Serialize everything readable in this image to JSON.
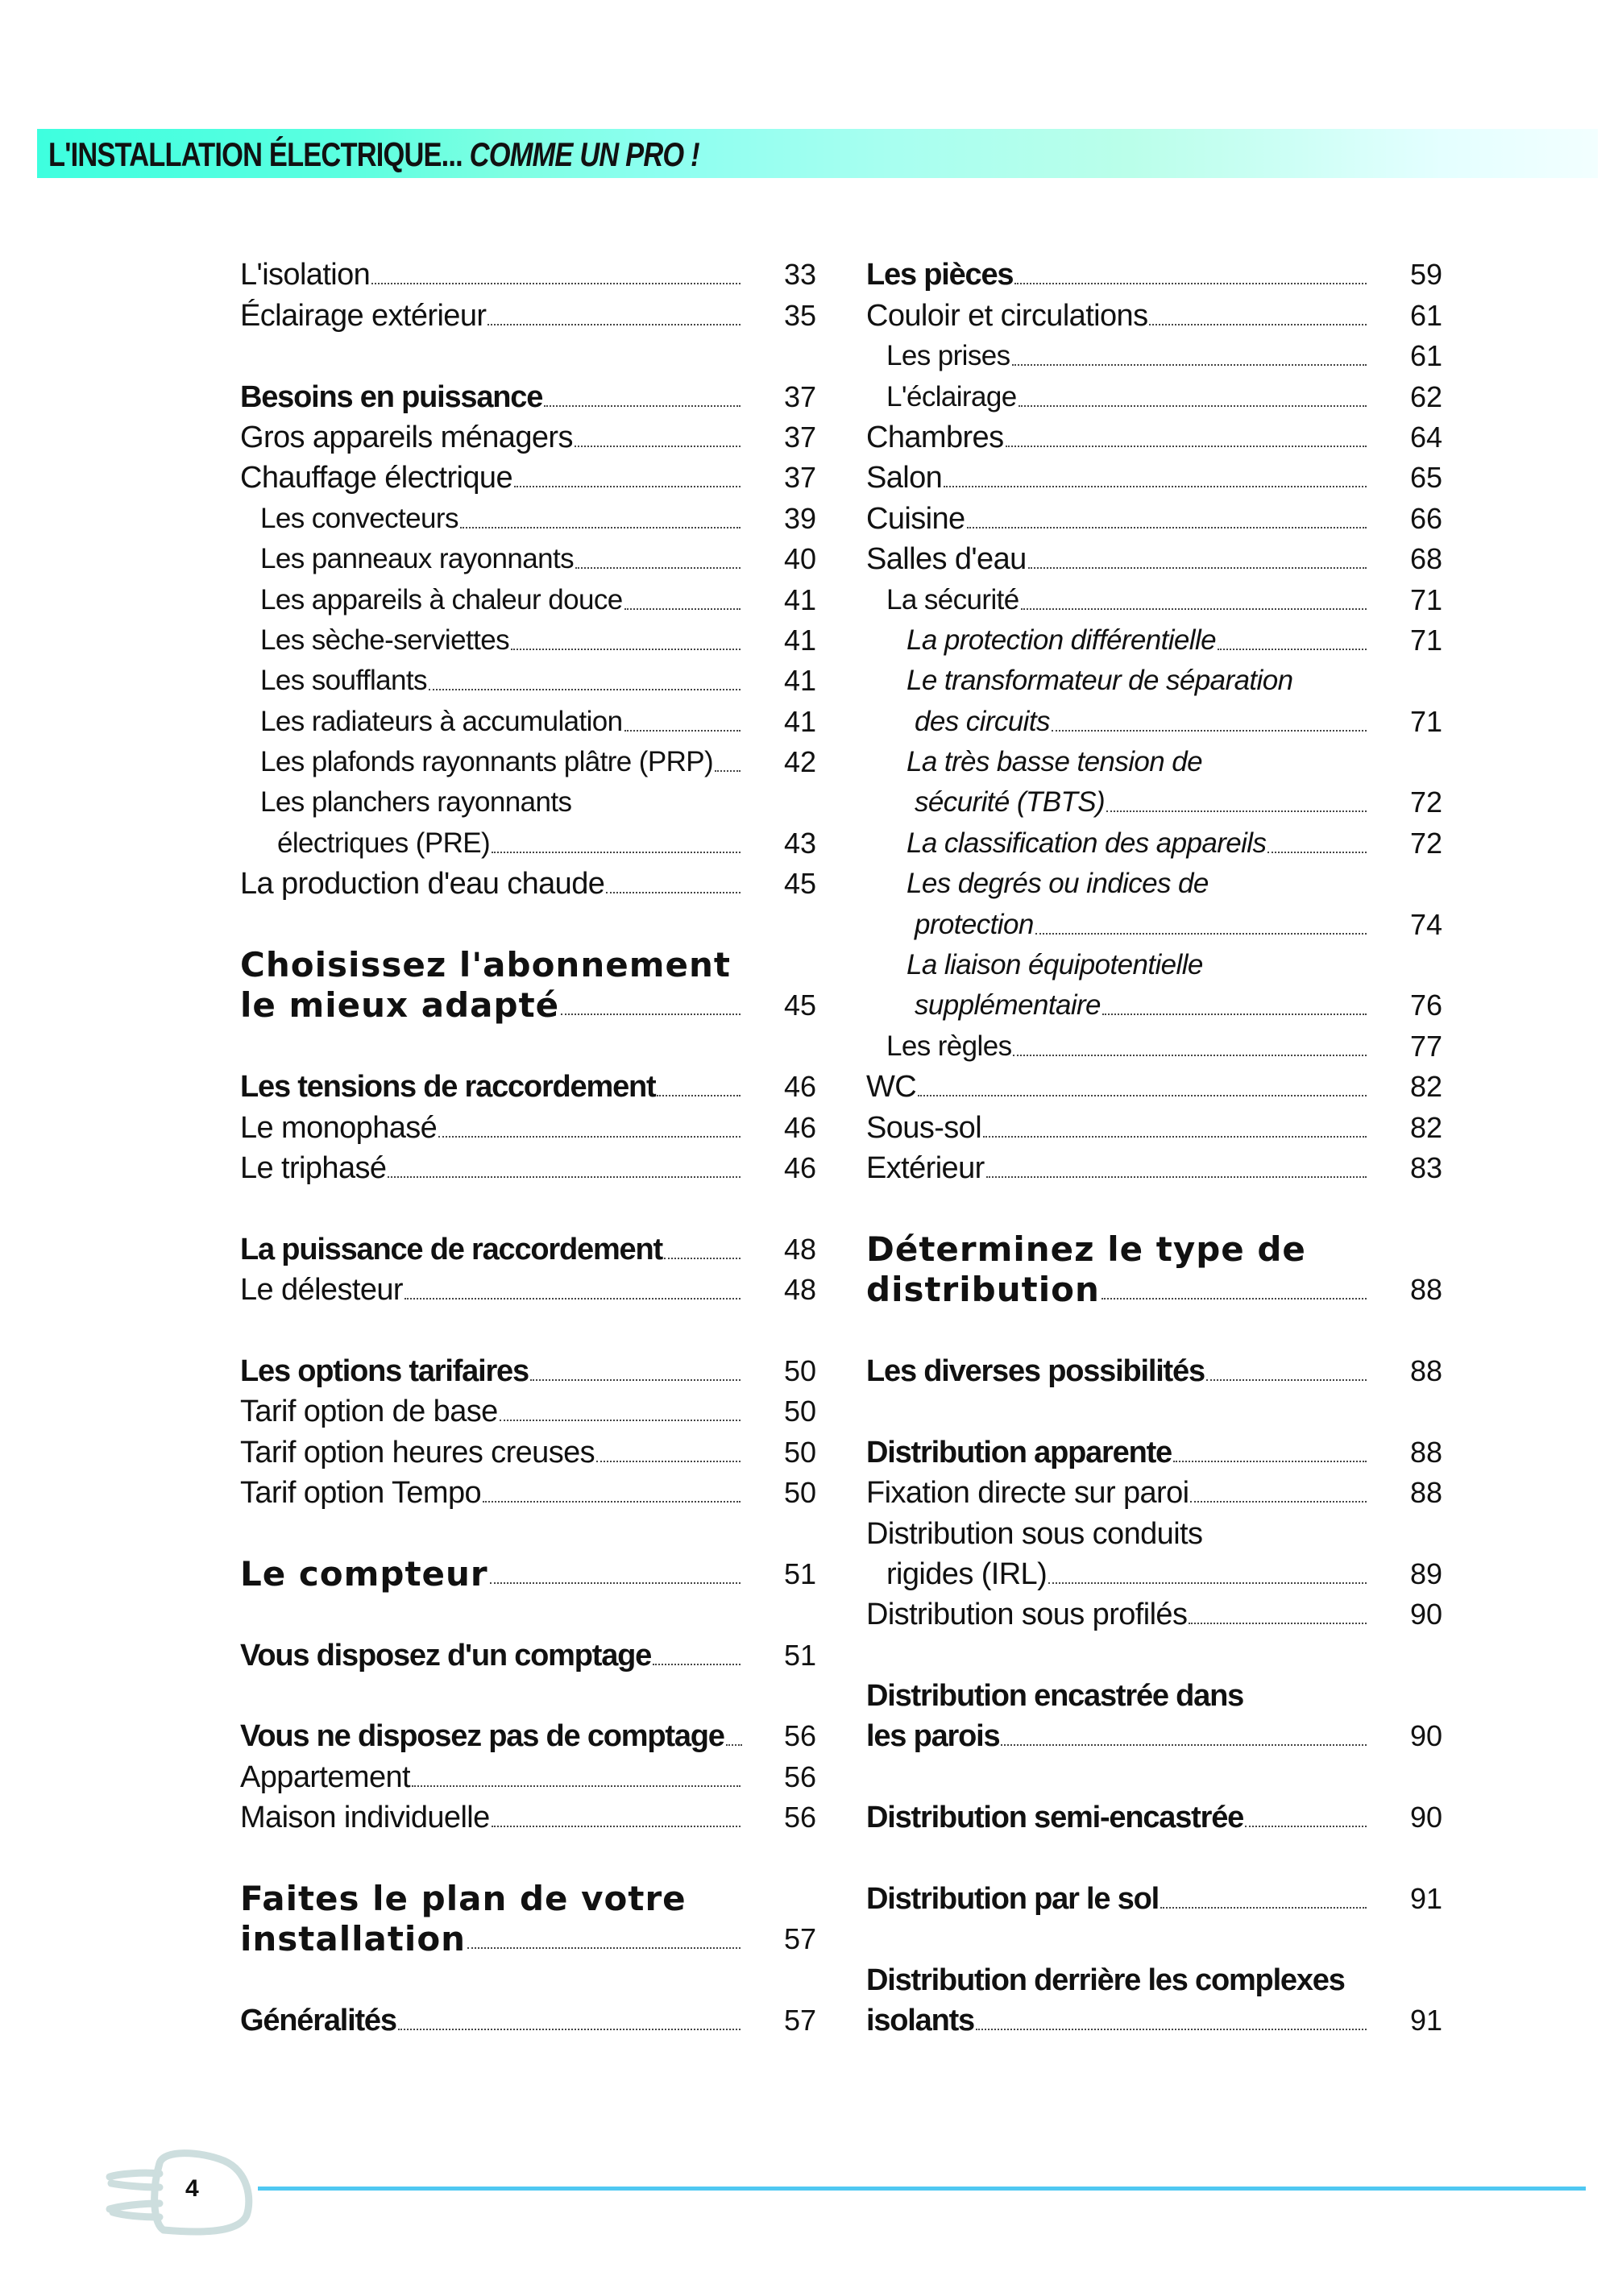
{
  "header": {
    "title_plain": "L'INSTALLATION ÉLECTRIQUE...",
    "title_italic": "COMME UN PRO !"
  },
  "footer": {
    "page_number": "4",
    "icon": "plug-icon",
    "accent_color": "#4fc8f2"
  },
  "columns": [
    {
      "groups": [
        {
          "entries": [
            {
              "lines": [
                "L'isolation"
              ],
              "page": "33",
              "style": "normal"
            },
            {
              "lines": [
                "Éclairage extérieur"
              ],
              "page": "35",
              "style": "normal"
            }
          ]
        },
        {
          "entries": [
            {
              "lines": [
                "Besoins en puissance"
              ],
              "page": "37",
              "style": "bold"
            },
            {
              "lines": [
                "Gros appareils ménagers"
              ],
              "page": "37",
              "style": "normal"
            },
            {
              "lines": [
                "Chauffage électrique"
              ],
              "page": "37",
              "style": "normal"
            },
            {
              "lines": [
                "Les convecteurs"
              ],
              "page": "39",
              "style": "sub"
            },
            {
              "lines": [
                "Les panneaux rayonnants"
              ],
              "page": "40",
              "style": "sub"
            },
            {
              "lines": [
                "Les appareils à chaleur douce"
              ],
              "page": "41",
              "style": "sub"
            },
            {
              "lines": [
                "Les sèche-serviettes"
              ],
              "page": "41",
              "style": "sub"
            },
            {
              "lines": [
                "Les soufflants"
              ],
              "page": "41",
              "style": "sub"
            },
            {
              "lines": [
                "Les radiateurs à accumulation"
              ],
              "page": "41",
              "style": "sub"
            },
            {
              "lines": [
                "Les plafonds rayonnants plâtre (PRP)"
              ],
              "page": "42",
              "style": "sub"
            },
            {
              "lines": [
                "Les planchers rayonnants",
                "électriques (PRE)"
              ],
              "page": "43",
              "style": "sub"
            },
            {
              "lines": [
                "La production d'eau chaude"
              ],
              "page": "45",
              "style": "normal"
            }
          ]
        },
        {
          "entries": [
            {
              "lines": [
                "Choisissez  l'abonnement",
                "le mieux adapté"
              ],
              "page": "45",
              "style": "heavy"
            }
          ]
        },
        {
          "entries": [
            {
              "lines": [
                "Les tensions de raccordement"
              ],
              "page": "46",
              "style": "bold"
            },
            {
              "lines": [
                "Le monophasé"
              ],
              "page": "46",
              "style": "normal"
            },
            {
              "lines": [
                "Le triphasé"
              ],
              "page": "46",
              "style": "normal"
            }
          ]
        },
        {
          "entries": [
            {
              "lines": [
                "La puissance de raccordement"
              ],
              "page": "48",
              "style": "bold"
            },
            {
              "lines": [
                "Le délesteur"
              ],
              "page": "48",
              "style": "normal"
            }
          ]
        },
        {
          "entries": [
            {
              "lines": [
                "Les options tarifaires"
              ],
              "page": "50",
              "style": "bold"
            },
            {
              "lines": [
                "Tarif option de base"
              ],
              "page": "50",
              "style": "normal"
            },
            {
              "lines": [
                "Tarif option heures creuses"
              ],
              "page": "50",
              "style": "normal"
            },
            {
              "lines": [
                "Tarif option Tempo"
              ],
              "page": "50",
              "style": "normal"
            }
          ]
        },
        {
          "entries": [
            {
              "lines": [
                "Le compteur"
              ],
              "page": "51",
              "style": "heavy"
            }
          ]
        },
        {
          "entries": [
            {
              "lines": [
                "Vous disposez d'un comptage"
              ],
              "page": "51",
              "style": "bold"
            }
          ]
        },
        {
          "entries": [
            {
              "lines": [
                "Vous ne disposez pas de comptage"
              ],
              "page": "56",
              "style": "bold"
            },
            {
              "lines": [
                "Appartement"
              ],
              "page": "56",
              "style": "normal"
            },
            {
              "lines": [
                "Maison individuelle"
              ],
              "page": "56",
              "style": "normal"
            }
          ]
        },
        {
          "entries": [
            {
              "lines": [
                "Faites le plan de votre",
                "installation"
              ],
              "page": "57",
              "style": "heavy"
            }
          ]
        },
        {
          "entries": [
            {
              "lines": [
                "Généralités"
              ],
              "page": "57",
              "style": "bold"
            }
          ]
        }
      ]
    },
    {
      "groups": [
        {
          "entries": [
            {
              "lines": [
                "Les pièces"
              ],
              "page": "59",
              "style": "bold"
            },
            {
              "lines": [
                "Couloir et circulations"
              ],
              "page": "61",
              "style": "normal"
            },
            {
              "lines": [
                "Les prises"
              ],
              "page": "61",
              "style": "sub"
            },
            {
              "lines": [
                "L'éclairage"
              ],
              "page": "62",
              "style": "sub"
            },
            {
              "lines": [
                "Chambres"
              ],
              "page": "64",
              "style": "normal"
            },
            {
              "lines": [
                "Salon"
              ],
              "page": "65",
              "style": "normal"
            },
            {
              "lines": [
                "Cuisine"
              ],
              "page": "66",
              "style": "normal"
            },
            {
              "lines": [
                "Salles d'eau"
              ],
              "page": "68",
              "style": "normal"
            },
            {
              "lines": [
                "La sécurité"
              ],
              "page": "71",
              "style": "sub"
            },
            {
              "lines": [
                "La protection différentielle"
              ],
              "page": "71",
              "style": "italic"
            },
            {
              "lines": [
                "Le transformateur de séparation",
                "des circuits"
              ],
              "page": "71",
              "style": "italic"
            },
            {
              "lines": [
                "La très basse tension de",
                "sécurité (TBTS)"
              ],
              "page": "72",
              "style": "italic"
            },
            {
              "lines": [
                "La classification des appareils"
              ],
              "page": "72",
              "style": "italic"
            },
            {
              "lines": [
                "Les degrés ou indices de",
                "protection"
              ],
              "page": "74",
              "style": "italic"
            },
            {
              "lines": [
                "La liaison équipotentielle",
                "supplémentaire"
              ],
              "page": "76",
              "style": "italic"
            },
            {
              "lines": [
                "Les règles"
              ],
              "page": "77",
              "style": "sub"
            },
            {
              "lines": [
                "WC"
              ],
              "page": "82",
              "style": "normal"
            },
            {
              "lines": [
                "Sous-sol"
              ],
              "page": "82",
              "style": "normal"
            },
            {
              "lines": [
                "Extérieur"
              ],
              "page": "83",
              "style": "normal"
            }
          ]
        },
        {
          "entries": [
            {
              "lines": [
                "Déterminez le type de",
                "distribution"
              ],
              "page": "88",
              "style": "heavy"
            }
          ]
        },
        {
          "entries": [
            {
              "lines": [
                "Les diverses possibilités"
              ],
              "page": "88",
              "style": "bold"
            }
          ]
        },
        {
          "entries": [
            {
              "lines": [
                "Distribution apparente"
              ],
              "page": "88",
              "style": "bold"
            },
            {
              "lines": [
                "Fixation directe sur paroi"
              ],
              "page": "88",
              "style": "normal"
            },
            {
              "lines": [
                "Distribution sous conduits",
                "rigides (IRL)"
              ],
              "page": "89",
              "style": "normal"
            },
            {
              "lines": [
                "Distribution sous profilés"
              ],
              "page": "90",
              "style": "normal"
            }
          ]
        },
        {
          "entries": [
            {
              "lines": [
                "Distribution encastrée dans",
                "les parois"
              ],
              "page": "90",
              "style": "bold"
            }
          ]
        },
        {
          "entries": [
            {
              "lines": [
                "Distribution semi-encastrée"
              ],
              "page": "90",
              "style": "bold"
            }
          ]
        },
        {
          "entries": [
            {
              "lines": [
                "Distribution par le sol"
              ],
              "page": "91",
              "style": "bold"
            }
          ]
        },
        {
          "entries": [
            {
              "lines": [
                "Distribution derrière les  complexes",
                "isolants"
              ],
              "page": "91",
              "style": "bold"
            }
          ]
        }
      ]
    }
  ]
}
